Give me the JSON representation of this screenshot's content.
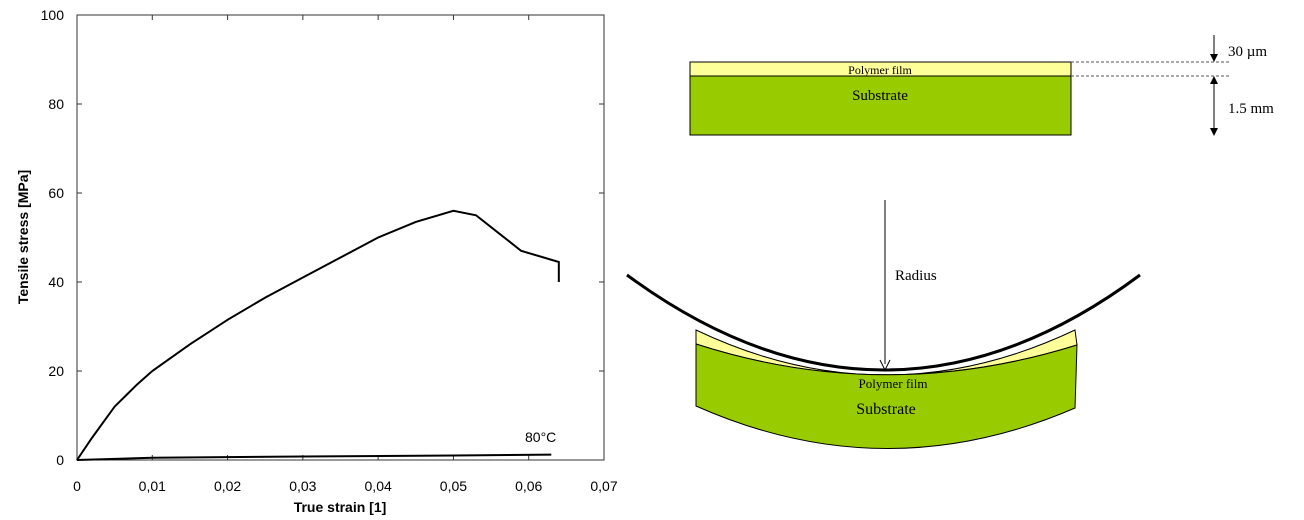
{
  "chart_data": {
    "type": "line",
    "xlabel": "True strain [1]",
    "ylabel": "Tensile stress [MPa]",
    "annotation": "80°C",
    "xlim": [
      0,
      0.07
    ],
    "ylim": [
      0,
      100
    ],
    "xticks": [
      0,
      {
        "value": 0.01,
        "label": "0,01"
      },
      {
        "value": 0.02,
        "label": "0,02"
      },
      {
        "value": 0.03,
        "label": "0,03"
      },
      {
        "value": 0.04,
        "label": "0,04"
      },
      {
        "value": 0.05,
        "label": "0,05"
      },
      {
        "value": 0.06,
        "label": "0,06"
      },
      {
        "value": 0.07,
        "label": "0,07"
      }
    ],
    "yticks": [
      0,
      20,
      40,
      60,
      80,
      100
    ],
    "grid": false,
    "series": [
      {
        "color": "#000000",
        "x": [
          0,
          0.002,
          0.005,
          0.008,
          0.01,
          0.015,
          0.02,
          0.025,
          0.03,
          0.035,
          0.04,
          0.045,
          0.05,
          0.053,
          0.056,
          0.059,
          0.062,
          0.064,
          0.064
        ],
        "values": [
          0,
          5,
          12,
          17,
          20,
          26,
          31.5,
          36.5,
          41,
          45.5,
          50,
          53.5,
          56,
          55,
          51,
          47,
          45.5,
          44.5,
          40
        ]
      },
      {
        "color": "#000000",
        "x": [
          0,
          0.01,
          0.03,
          0.05,
          0.063
        ],
        "values": [
          0,
          0.5,
          0.8,
          1,
          1.2
        ]
      }
    ]
  },
  "diagram": {
    "top_film": "Polymer film",
    "top_substrate": "Substrate",
    "film_thickness": "30 µm",
    "substrate_thickness": "1.5 mm",
    "radius": "Radius",
    "bent_film": "Polymer film",
    "bent_substrate": "Substrate"
  }
}
